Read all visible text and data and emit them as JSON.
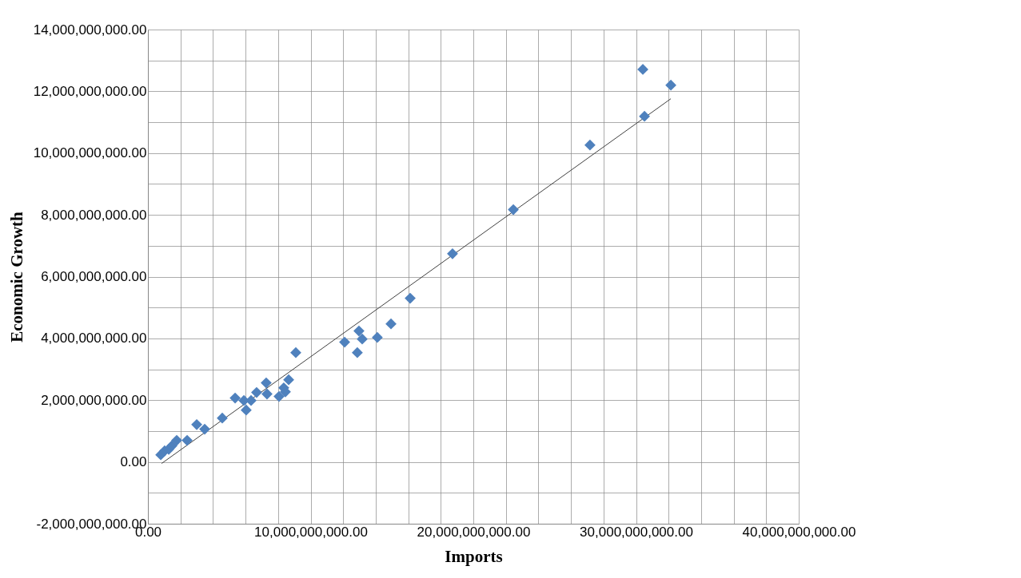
{
  "chart_data": {
    "type": "scatter",
    "xlabel": "Imports",
    "ylabel": "Economic Growth",
    "xlim": [
      0,
      40000000000
    ],
    "ylim": [
      -2000000000,
      14000000000
    ],
    "xticks": [
      {
        "value": 0,
        "label": "0.00"
      },
      {
        "value": 2000000000,
        "label": null
      },
      {
        "value": 4000000000,
        "label": null
      },
      {
        "value": 6000000000,
        "label": null
      },
      {
        "value": 8000000000,
        "label": null
      },
      {
        "value": 10000000000,
        "label": "10,000,000,000.00"
      },
      {
        "value": 12000000000,
        "label": null
      },
      {
        "value": 14000000000,
        "label": null
      },
      {
        "value": 16000000000,
        "label": null
      },
      {
        "value": 18000000000,
        "label": null
      },
      {
        "value": 20000000000,
        "label": "20,000,000,000.00"
      },
      {
        "value": 22000000000,
        "label": null
      },
      {
        "value": 24000000000,
        "label": null
      },
      {
        "value": 26000000000,
        "label": null
      },
      {
        "value": 28000000000,
        "label": null
      },
      {
        "value": 30000000000,
        "label": "30,000,000,000.00"
      },
      {
        "value": 32000000000,
        "label": null
      },
      {
        "value": 34000000000,
        "label": null
      },
      {
        "value": 36000000000,
        "label": null
      },
      {
        "value": 38000000000,
        "label": null
      },
      {
        "value": 40000000000,
        "label": "40,000,000,000.00"
      }
    ],
    "yticks": [
      {
        "value": -2000000000,
        "label": "-2,000,000,000.00"
      },
      {
        "value": -1000000000,
        "label": null
      },
      {
        "value": 0,
        "label": "0.00"
      },
      {
        "value": 1000000000,
        "label": null
      },
      {
        "value": 2000000000,
        "label": "2,000,000,000.00"
      },
      {
        "value": 3000000000,
        "label": null
      },
      {
        "value": 4000000000,
        "label": "4,000,000,000.00"
      },
      {
        "value": 5000000000,
        "label": null
      },
      {
        "value": 6000000000,
        "label": "6,000,000,000.00"
      },
      {
        "value": 7000000000,
        "label": null
      },
      {
        "value": 8000000000,
        "label": "8,000,000,000.00"
      },
      {
        "value": 9000000000,
        "label": null
      },
      {
        "value": 10000000000,
        "label": "10,000,000,000.00"
      },
      {
        "value": 11000000000,
        "label": null
      },
      {
        "value": 12000000000,
        "label": "12,000,000,000.00"
      },
      {
        "value": 13000000000,
        "label": null
      },
      {
        "value": 14000000000,
        "label": "14,000,000,000.00"
      }
    ],
    "grid": true,
    "series": [
      {
        "marker": "diamond",
        "color": "#4f81bd",
        "x": [
          790000000,
          1030000000,
          1280000000,
          1470000000,
          1770000000,
          2410000000,
          3000000000,
          3490000000,
          4570000000,
          5360000000,
          5900000000,
          6040000000,
          6340000000,
          6680000000,
          7270000000,
          7320000000,
          8060000000,
          8350000000,
          8450000000,
          8650000000,
          9090000000,
          12090000000,
          12870000000,
          12970000000,
          13170000000,
          14100000000,
          14940000000,
          16120000000,
          18720000000,
          22460000000,
          27170000000,
          30420000000,
          30520000000,
          32140000000
        ],
        "values": [
          230000000,
          360000000,
          410000000,
          520000000,
          700000000,
          700000000,
          1210000000,
          1060000000,
          1420000000,
          2070000000,
          1990000000,
          1680000000,
          1990000000,
          2250000000,
          2560000000,
          2200000000,
          2120000000,
          2400000000,
          2270000000,
          2660000000,
          3540000000,
          3880000000,
          3540000000,
          4240000000,
          3980000000,
          4030000000,
          4470000000,
          5300000000,
          6740000000,
          8170000000,
          10260000000,
          12710000000,
          11190000000,
          12200000000
        ]
      },
      {
        "type": "line",
        "marker": "none",
        "color": "#404040",
        "x": [
          840000000,
          32140000000
        ],
        "values": [
          -50000000,
          11760000000
        ]
      }
    ]
  }
}
